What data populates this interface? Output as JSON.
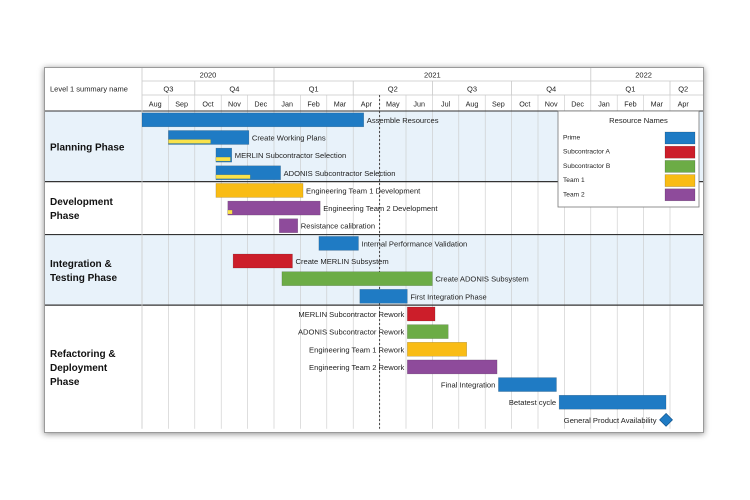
{
  "chart_data": {
    "type": "gantt",
    "corner_label": "Level 1 summary name",
    "years": [
      {
        "label": "2020",
        "start": 0,
        "end": 5
      },
      {
        "label": "2021",
        "start": 5,
        "end": 17
      },
      {
        "label": "2022",
        "start": 17,
        "end": 21
      }
    ],
    "quarters": [
      {
        "label": "Q3",
        "start": 0,
        "end": 2
      },
      {
        "label": "Q4",
        "start": 2,
        "end": 5
      },
      {
        "label": "Q1",
        "start": 5,
        "end": 8
      },
      {
        "label": "Q2",
        "start": 8,
        "end": 11
      },
      {
        "label": "Q3",
        "start": 11,
        "end": 14
      },
      {
        "label": "Q4",
        "start": 14,
        "end": 17
      },
      {
        "label": "Q1",
        "start": 17,
        "end": 20
      },
      {
        "label": "Q2",
        "start": 20,
        "end": 21
      }
    ],
    "months": [
      "Aug",
      "Sep",
      "Oct",
      "Nov",
      "Dec",
      "Jan",
      "Feb",
      "Mar",
      "Apr",
      "May",
      "Jun",
      "Jul",
      "Aug",
      "Sep",
      "Oct",
      "Nov",
      "Dec",
      "Jan",
      "Feb",
      "Mar",
      "Apr"
    ],
    "today_marker": 9.0,
    "phases": [
      {
        "label": "Planning Phase",
        "rows": 4,
        "shaded": true
      },
      {
        "label": "Development Phase",
        "rows": 3,
        "shaded": false
      },
      {
        "label": "Integration & Testing Phase",
        "rows": 4,
        "shaded": true
      },
      {
        "label": "Refactoring & Deployment Phase",
        "rows": 7,
        "shaded": false
      }
    ],
    "tasks": [
      {
        "name": "Assemble Resources",
        "resource": "Prime",
        "start": 0.0,
        "end": 8.4,
        "label_side": "right"
      },
      {
        "name": "Create Working Plans",
        "resource": "Prime",
        "start": 1.0,
        "end": 4.05,
        "label_side": "right",
        "progress": {
          "resource": "Team 1",
          "start": 1.0,
          "end": 2.6
        }
      },
      {
        "name": "MERLIN Subcontractor Selection",
        "resource": "Prime",
        "start": 2.8,
        "end": 3.4,
        "label_side": "right",
        "progress": {
          "resource": "Team 1",
          "start": 2.8,
          "end": 3.35
        }
      },
      {
        "name": "ADONIS Subcontractor Selection",
        "resource": "Prime",
        "start": 2.8,
        "end": 5.25,
        "label_side": "right",
        "progress": {
          "resource": "Team 1",
          "start": 2.8,
          "end": 4.1
        }
      },
      {
        "name": "Engineering Team 1 Development",
        "resource": "Team 1",
        "start": 2.8,
        "end": 6.1,
        "label_side": "right"
      },
      {
        "name": "Engineering Team 2 Development",
        "resource": "Team 2",
        "start": 3.25,
        "end": 6.75,
        "label_side": "right",
        "progress": {
          "resource": "Team 1",
          "start": 3.25,
          "end": 3.42
        }
      },
      {
        "name": "Resistance calibration",
        "resource": "Team 2",
        "start": 5.2,
        "end": 5.9,
        "label_side": "right"
      },
      {
        "name": "Internal Performance Validation",
        "resource": "Prime",
        "start": 6.7,
        "end": 8.2,
        "label_side": "right"
      },
      {
        "name": "Create MERLIN Subsystem",
        "resource": "Subcontractor A",
        "start": 3.45,
        "end": 5.7,
        "label_side": "right"
      },
      {
        "name": "Create ADONIS Subsystem",
        "resource": "Subcontractor B",
        "start": 5.3,
        "end": 11.0,
        "label_side": "right"
      },
      {
        "name": "First Integration Phase",
        "resource": "Prime",
        "start": 8.25,
        "end": 10.05,
        "label_side": "right"
      },
      {
        "name": "MERLIN Subcontractor Rework",
        "resource": "Subcontractor A",
        "start": 10.05,
        "end": 11.1,
        "label_side": "left"
      },
      {
        "name": "ADONIS Subcontractor Rework",
        "resource": "Subcontractor B",
        "start": 10.05,
        "end": 11.6,
        "label_side": "left"
      },
      {
        "name": "Engineering Team 1 Rework",
        "resource": "Team 1",
        "start": 10.05,
        "end": 12.3,
        "label_side": "left"
      },
      {
        "name": "Engineering Team 2 Rework",
        "resource": "Team 2",
        "start": 10.05,
        "end": 13.45,
        "label_side": "left"
      },
      {
        "name": "Final Integration",
        "resource": "Prime",
        "start": 13.5,
        "end": 15.7,
        "label_side": "left"
      },
      {
        "name": "Betatest cycle",
        "resource": "Prime",
        "start": 15.8,
        "end": 19.85,
        "label_side": "left"
      },
      {
        "name": "General Product Availability",
        "resource": "Prime",
        "start": 19.85,
        "end": 19.85,
        "label_side": "left",
        "milestone": true
      }
    ],
    "legend": {
      "title": "Resource Names",
      "placement": "top-right",
      "items": [
        {
          "label": "Prime",
          "color": "#1f7bc4"
        },
        {
          "label": "Subcontractor A",
          "color": "#cc1e2a"
        },
        {
          "label": "Subcontractor B",
          "color": "#6cac46"
        },
        {
          "label": "Team 1",
          "color": "#f9bc15"
        },
        {
          "label": "Team 2",
          "color": "#8e4b9b"
        }
      ]
    },
    "colors": {
      "phase_shade": "#e8f2fa",
      "grid": "#c8c8c8",
      "frame": "#9a9a9a",
      "divider": "#333333",
      "progress": "#f9e24a"
    }
  }
}
